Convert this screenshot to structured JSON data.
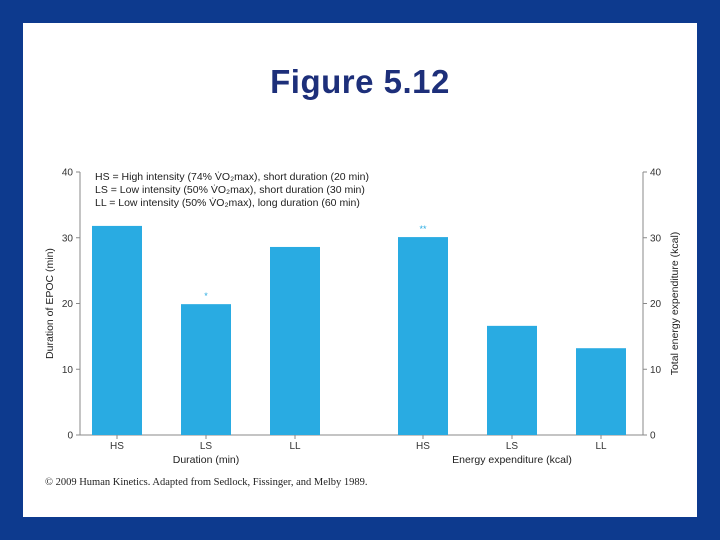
{
  "slide": {
    "title": "Figure 5.12",
    "credit": "© 2009 Human Kinetics. Adapted from Sedlock, Fissinger, and Melby 1989."
  },
  "colors": {
    "background": "#0d3a8e",
    "panel": "#ffffff",
    "title": "#1d2f7a",
    "bar": "#29abe2",
    "axis": "#888888"
  },
  "chart_data": {
    "type": "bar",
    "legend_position": "top-left",
    "grid": false,
    "legend": [
      "HS = High intensity (74% V̇O₂max), short duration (20 min)",
      "LS = Low intensity (50% V̇O₂max), short duration (30 min)",
      "LL = Low intensity (50% V̇O₂max), long duration (60 min)"
    ],
    "y_left": {
      "label": "Duration of EPOC (min)",
      "ylim": [
        0,
        40
      ],
      "ticks": [
        0,
        10,
        20,
        30,
        40
      ]
    },
    "y_right": {
      "label": "Total energy expenditure (kcal)",
      "ylim": [
        0,
        40
      ],
      "ticks": [
        0,
        10,
        20,
        30,
        40
      ]
    },
    "groups": [
      {
        "xlabel": "Duration (min)",
        "axis": "left",
        "categories": [
          "HS",
          "LS",
          "LL"
        ],
        "values": [
          31.8,
          19.9,
          28.6
        ],
        "annotations": [
          "",
          "*",
          ""
        ]
      },
      {
        "xlabel": "Energy expenditure (kcal)",
        "axis": "right",
        "categories": [
          "HS",
          "LS",
          "LL"
        ],
        "values": [
          30.1,
          16.6,
          13.2
        ],
        "annotations": [
          "**",
          "",
          ""
        ]
      }
    ]
  }
}
